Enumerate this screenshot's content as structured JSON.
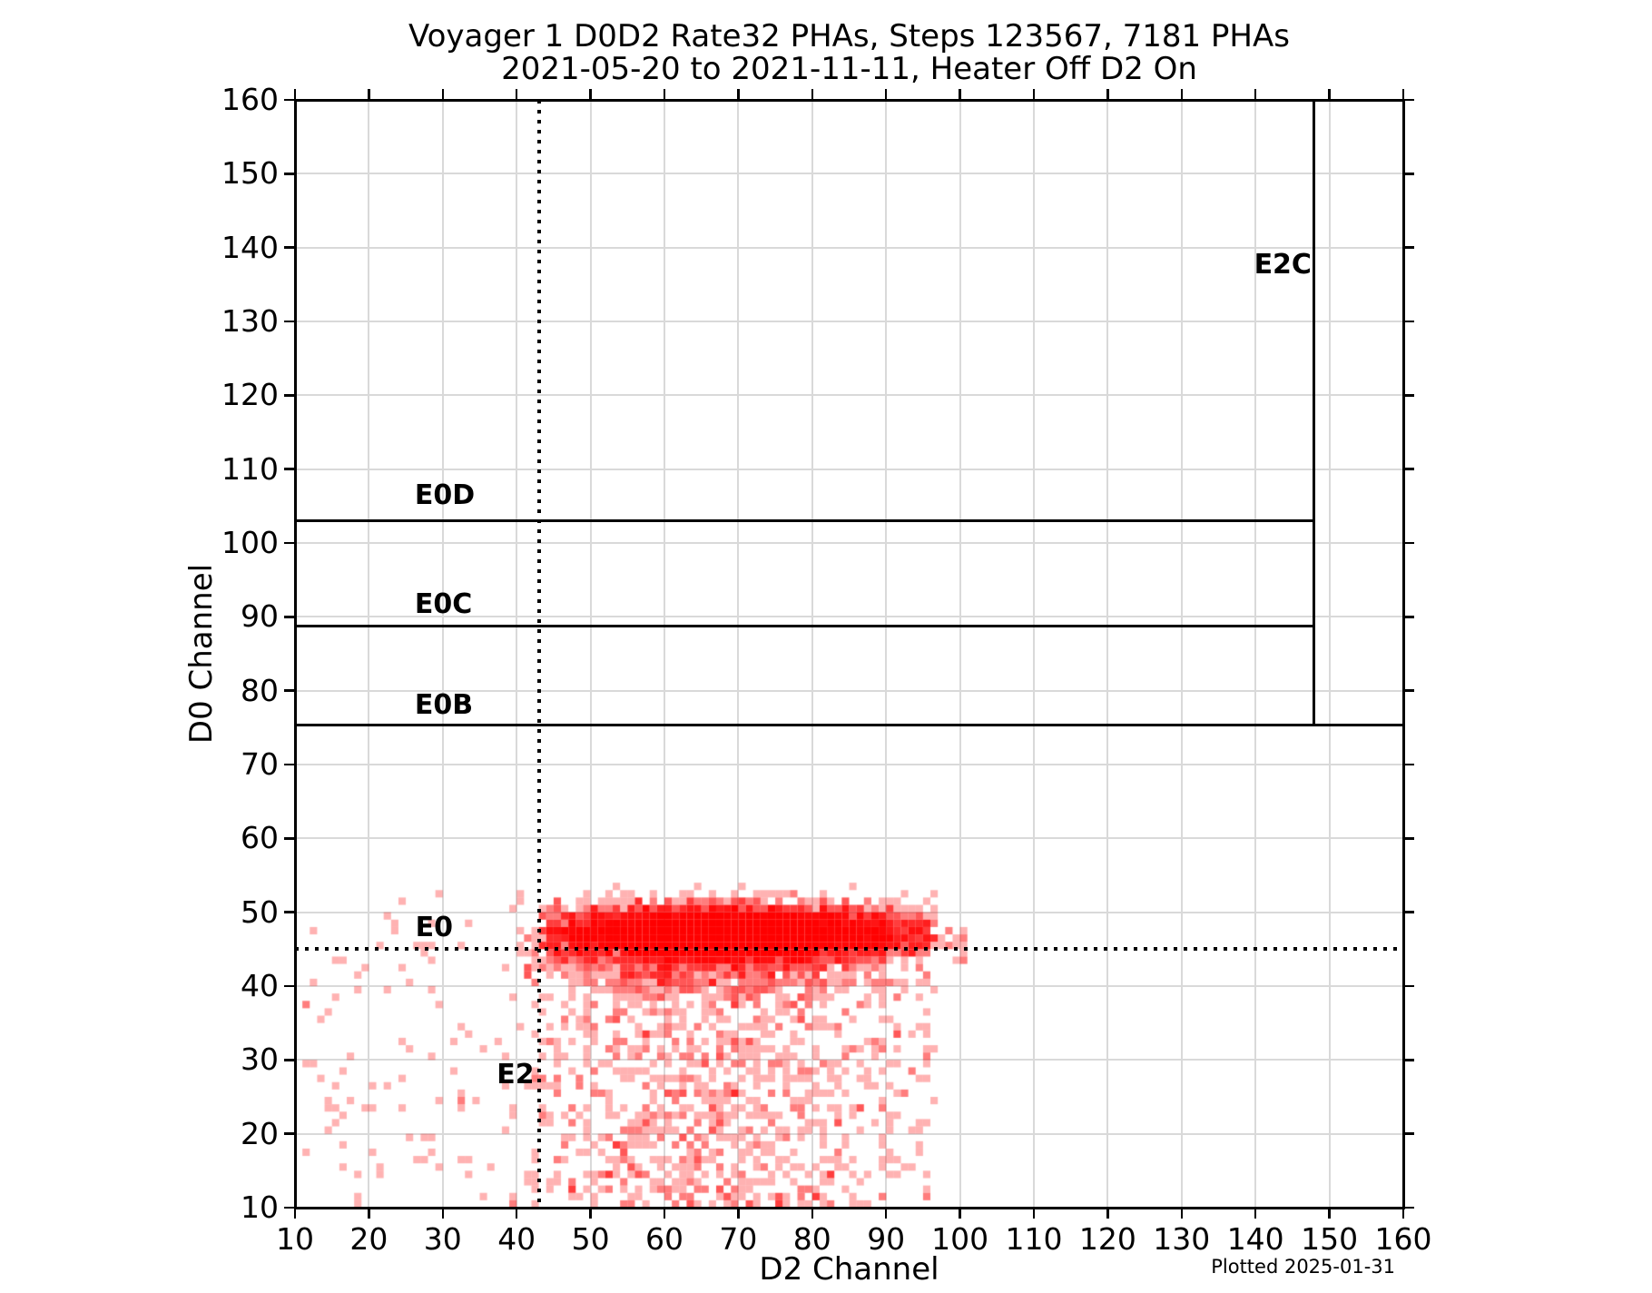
{
  "figure": {
    "title_line1": "Voyager 1 D0D2 Rate32 PHAs, Steps 123567, 7181 PHAs",
    "title_line2": "2021-05-20 to 2021-11-11, Heater Off D2 On",
    "footer": "Plotted 2025-01-31"
  },
  "chart_data": {
    "type": "heatmap",
    "title": "Voyager 1 D0D2 Rate32 PHAs, Steps 123567, 7181 PHAs",
    "subtitle": "2021-05-20 to 2021-11-11, Heater Off D2 On",
    "xlabel": "D2 Channel",
    "ylabel": "D0 Channel",
    "xlim": [
      10,
      160
    ],
    "ylim": [
      10,
      160
    ],
    "x_ticks": [
      10,
      20,
      30,
      40,
      50,
      60,
      70,
      80,
      90,
      100,
      110,
      120,
      130,
      140,
      150,
      160
    ],
    "y_ticks": [
      10,
      20,
      30,
      40,
      50,
      60,
      70,
      80,
      90,
      100,
      110,
      120,
      130,
      140,
      150,
      160
    ],
    "grid": true,
    "grid_color": "#d9d9d9",
    "bin_size_channels": 1,
    "total_phas": 7181,
    "point_color_rgb": [
      255,
      0,
      0
    ],
    "point_alpha_per_hit": 0.3,
    "annotation_lines": [
      {
        "name": "E0D",
        "orient": "h",
        "at": 103.0,
        "from": 10,
        "to": 147.9,
        "style": "solid"
      },
      {
        "name": "E0C",
        "orient": "h",
        "at": 88.7,
        "from": 10,
        "to": 147.9,
        "style": "solid"
      },
      {
        "name": "E0B",
        "orient": "h",
        "at": 75.3,
        "from": 10,
        "to": 160,
        "style": "solid"
      },
      {
        "name": "E2C",
        "orient": "v",
        "at": 147.9,
        "from": 75.3,
        "to": 160,
        "style": "solid"
      },
      {
        "name": "E2",
        "orient": "v",
        "at": 43.0,
        "from": 10,
        "to": 160,
        "style": "dotted"
      },
      {
        "name": "E0",
        "orient": "h",
        "at": 45.0,
        "from": 10,
        "to": 160,
        "style": "dotted"
      }
    ],
    "annotation_labels": [
      {
        "text": "E0D",
        "x": 26.2,
        "y": 104.5
      },
      {
        "text": "E0C",
        "x": 26.2,
        "y": 89.8
      },
      {
        "text": "E0B",
        "x": 26.2,
        "y": 76.2
      },
      {
        "text": "E0",
        "x": 26.3,
        "y": 46.0
      },
      {
        "text": "E2",
        "x": 37.3,
        "y": 26.1
      },
      {
        "text": "E2C",
        "x": 139.8,
        "y": 135.8
      }
    ],
    "density_model": {
      "seed": 7181,
      "components": [
        {
          "name": "e0-band-core",
          "weight": 0.72,
          "x": {
            "dist": "normal",
            "mean": 69,
            "sigma": 13,
            "min": 43.5,
            "max": 95.5
          },
          "y": {
            "dist": "normal",
            "mean": 47.1,
            "sigma": 1.8,
            "min": 42,
            "max": 55.5
          }
        },
        {
          "name": "band-lower-halo",
          "weight": 0.1,
          "x": {
            "dist": "normal",
            "mean": 65,
            "sigma": 13,
            "min": 40.5,
            "max": 96
          },
          "y": {
            "dist": "normal",
            "mean": 43.5,
            "sigma": 2.5,
            "min": 34,
            "max": 50
          }
        },
        {
          "name": "lower-spread",
          "weight": 0.13,
          "x": {
            "dist": "normal",
            "mean": 66,
            "sigma": 14,
            "min": 42,
            "max": 96
          },
          "y": {
            "dist": "uniform",
            "min": 10,
            "max": 48
          }
        },
        {
          "name": "background",
          "weight": 0.045,
          "x": {
            "dist": "uniform",
            "min": 11,
            "max": 97
          },
          "y": {
            "dist": "uniform",
            "min": 10,
            "max": 53
          }
        },
        {
          "name": "right-outliers",
          "weight": 0.005,
          "x": {
            "dist": "uniform",
            "min": 95,
            "max": 101
          },
          "y": {
            "dist": "normal",
            "mean": 46.5,
            "sigma": 1.5,
            "min": 43,
            "max": 50
          }
        }
      ]
    },
    "footer": "Plotted 2025-01-31"
  }
}
